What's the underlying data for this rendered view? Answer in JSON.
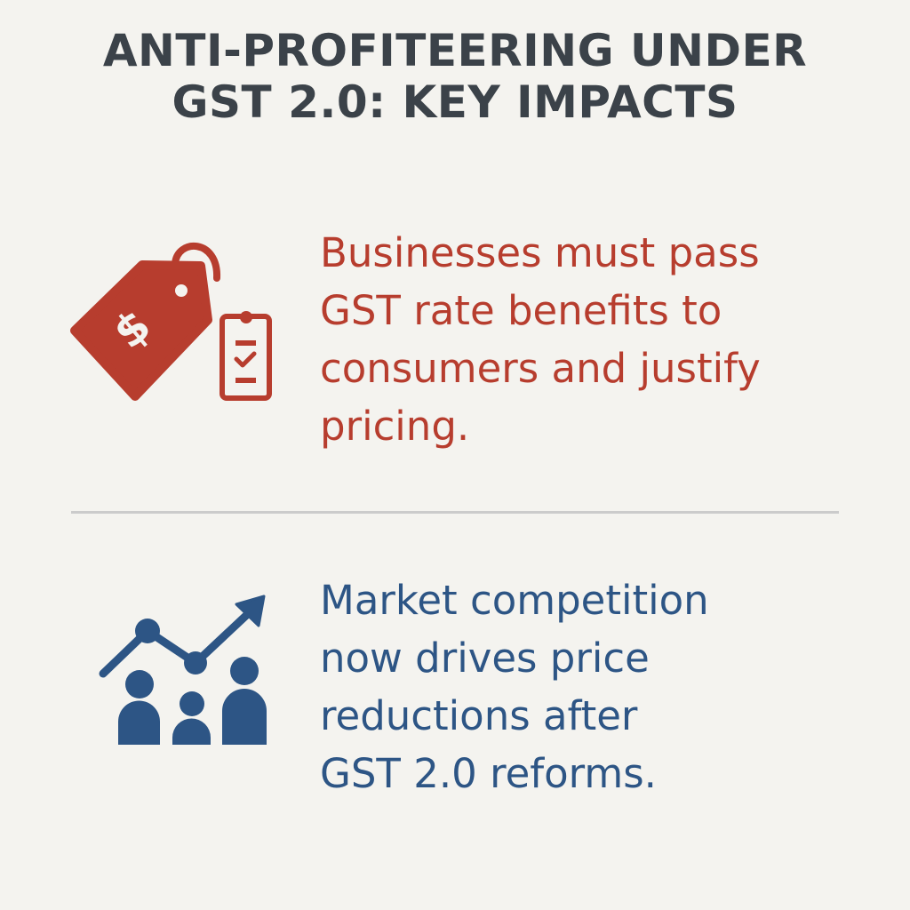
{
  "title": {
    "lines": [
      "ANTI-PROFITEERING UNDER",
      "GST 2.0: KEY IMPACTS"
    ]
  },
  "sections": [
    {
      "icon": "price-tag-clipboard-icon",
      "color": "#b73d2e",
      "lines": [
        "Businesses must pass",
        "GST rate benefits to",
        "consumers and justify",
        "pricing."
      ],
      "tag_symbol": "$"
    },
    {
      "icon": "market-growth-people-icon",
      "color": "#2d5585",
      "lines": [
        "Market competition",
        "now drives price",
        "reductions after",
        "GST 2.0 reforms."
      ]
    }
  ],
  "colors": {
    "background": "#f4f3ef",
    "title": "#3b4249",
    "red": "#b73d2e",
    "blue": "#2d5585",
    "divider": "#cbcbcb"
  }
}
